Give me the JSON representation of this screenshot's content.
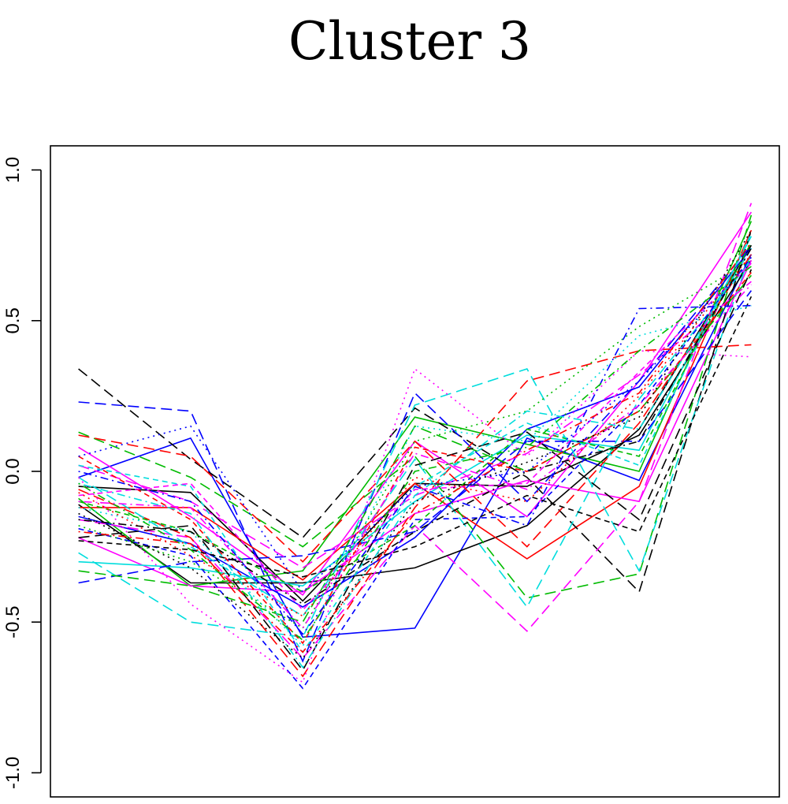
{
  "chart_data": {
    "type": "line",
    "title": "Cluster 3",
    "xlabel": "",
    "ylabel": "",
    "x": [
      1,
      2,
      3,
      4,
      5,
      6,
      7
    ],
    "ylim": [
      -1.08,
      1.08
    ],
    "xlim": [
      0.75,
      7.25
    ],
    "yticks": [
      "-1.0",
      "-0.5",
      "0.0",
      "0.5",
      "1.0"
    ],
    "ytick_values": [
      -1.0,
      -0.5,
      0.0,
      0.5,
      1.0
    ],
    "grid": false,
    "legend": "none",
    "colors": [
      "#000000",
      "#ff0000",
      "#00bb00",
      "#0000ff",
      "#00dddd",
      "#ff00ff"
    ],
    "series": [
      {
        "color": "#0000ff",
        "dash": "solid",
        "values": [
          -0.02,
          0.11,
          -0.55,
          -0.52,
          0.11,
          -0.03,
          0.72
        ]
      },
      {
        "color": "#000000",
        "dash": "solid",
        "values": [
          -0.05,
          -0.07,
          -0.43,
          -0.04,
          -0.05,
          0.12,
          0.7
        ]
      },
      {
        "color": "#000000",
        "dash": "solid",
        "values": [
          -0.11,
          -0.37,
          -0.37,
          -0.32,
          -0.18,
          0.14,
          0.75
        ]
      },
      {
        "color": "#ff0000",
        "dash": "solid",
        "values": [
          -0.12,
          -0.12,
          -0.36,
          -0.04,
          -0.29,
          -0.05,
          0.8
        ]
      },
      {
        "color": "#00bb00",
        "dash": "solid",
        "values": [
          -0.09,
          -0.38,
          -0.33,
          0.18,
          0.09,
          0.0,
          0.83
        ]
      },
      {
        "color": "#ff00ff",
        "dash": "solid",
        "values": [
          0.08,
          -0.15,
          -0.41,
          0.1,
          -0.15,
          0.3,
          0.86
        ]
      },
      {
        "color": "#ff00ff",
        "dash": "solid",
        "values": [
          -0.22,
          -0.38,
          -0.4,
          -0.14,
          -0.03,
          -0.1,
          0.7
        ]
      },
      {
        "color": "#0000ff",
        "dash": "solid",
        "values": [
          -0.15,
          -0.24,
          -0.45,
          -0.22,
          0.14,
          0.28,
          0.74
        ]
      },
      {
        "color": "#00dddd",
        "dash": "solid",
        "values": [
          -0.3,
          -0.32,
          -0.38,
          -0.1,
          0.12,
          0.07,
          0.78
        ]
      },
      {
        "color": "#000000",
        "dash": "dashed",
        "values": [
          0.34,
          0.04,
          -0.22,
          0.21,
          -0.02,
          -0.4,
          0.8
        ]
      },
      {
        "color": "#0000ff",
        "dash": "dashed",
        "values": [
          0.23,
          0.2,
          -0.63,
          0.26,
          -0.1,
          0.3,
          0.75
        ]
      },
      {
        "color": "#00bb00",
        "dash": "dashed",
        "values": [
          0.13,
          -0.02,
          -0.25,
          0.05,
          -0.42,
          -0.34,
          0.85
        ]
      },
      {
        "color": "#00dddd",
        "dash": "dashed",
        "values": [
          -0.27,
          -0.5,
          -0.55,
          0.22,
          0.34,
          -0.33,
          0.73
        ]
      },
      {
        "color": "#ff00ff",
        "dash": "dashed",
        "values": [
          -0.16,
          -0.22,
          -0.62,
          -0.18,
          -0.53,
          -0.1,
          0.89
        ]
      },
      {
        "color": "#ff0000",
        "dash": "dashed",
        "values": [
          -0.06,
          -0.22,
          -0.68,
          -0.12,
          0.3,
          0.4,
          0.42
        ]
      },
      {
        "color": "#0000ff",
        "dash": "dashed",
        "values": [
          -0.37,
          -0.3,
          -0.28,
          -0.2,
          0.1,
          0.1,
          0.6
        ]
      },
      {
        "color": "#00bb00",
        "dash": "dashed",
        "values": [
          -0.33,
          -0.38,
          -0.5,
          0.15,
          0.0,
          0.2,
          0.65
        ]
      },
      {
        "color": "#00dddd",
        "dash": "dashed",
        "values": [
          -0.02,
          -0.25,
          -0.48,
          0.04,
          -0.45,
          0.24,
          0.7
        ]
      },
      {
        "color": "#000000",
        "dash": "dashed",
        "values": [
          -0.22,
          -0.18,
          -0.66,
          0.02,
          0.13,
          -0.16,
          0.67
        ]
      },
      {
        "color": "#ff00ff",
        "dash": "dashed",
        "values": [
          0.02,
          -0.1,
          -0.32,
          -0.08,
          0.06,
          0.32,
          0.63
        ]
      },
      {
        "color": "#ff0000",
        "dash": "dashed",
        "values": [
          0.12,
          0.05,
          -0.3,
          0.1,
          -0.25,
          0.16,
          0.72
        ]
      },
      {
        "color": "#ff0000",
        "dash": "shortdash",
        "values": [
          0.05,
          -0.16,
          -0.57,
          0.08,
          0.0,
          0.2,
          0.66
        ]
      },
      {
        "color": "#00bb00",
        "dash": "shortdash",
        "values": [
          -0.1,
          -0.2,
          -0.4,
          -0.18,
          0.14,
          0.05,
          0.76
        ]
      },
      {
        "color": "#0000ff",
        "dash": "shortdash",
        "values": [
          -0.19,
          -0.28,
          -0.72,
          -0.16,
          -0.15,
          0.22,
          0.71
        ]
      },
      {
        "color": "#00dddd",
        "dash": "shortdash",
        "values": [
          0.02,
          -0.05,
          -0.6,
          -0.05,
          0.16,
          0.02,
          0.79
        ]
      },
      {
        "color": "#ff00ff",
        "dash": "shortdash",
        "values": [
          -0.08,
          -0.04,
          -0.46,
          -0.06,
          -0.04,
          0.33,
          0.69
        ]
      },
      {
        "color": "#000000",
        "dash": "shortdash",
        "values": [
          -0.23,
          -0.26,
          -0.35,
          -0.25,
          -0.08,
          -0.2,
          0.58
        ]
      },
      {
        "color": "#ff00ff",
        "dash": "dotted",
        "values": [
          -0.02,
          -0.44,
          -0.7,
          0.34,
          0.05,
          0.4,
          0.38
        ]
      },
      {
        "color": "#0000ff",
        "dash": "dotted",
        "values": [
          0.05,
          0.15,
          -0.4,
          -0.05,
          0.0,
          0.3,
          0.7
        ]
      },
      {
        "color": "#00bb00",
        "dash": "dotted",
        "values": [
          -0.18,
          -0.3,
          -0.52,
          0.1,
          0.2,
          0.48,
          0.7
        ]
      },
      {
        "color": "#00dddd",
        "dash": "dotted",
        "values": [
          -0.12,
          -0.2,
          -0.58,
          0.15,
          0.1,
          0.45,
          0.55
        ]
      },
      {
        "color": "#ff0000",
        "dash": "dotted",
        "values": [
          -0.07,
          -0.28,
          -0.48,
          -0.02,
          -0.1,
          0.25,
          0.72
        ]
      },
      {
        "color": "#000000",
        "dash": "dotted",
        "values": [
          -0.14,
          -0.32,
          -0.62,
          -0.1,
          0.03,
          0.18,
          0.8
        ]
      },
      {
        "color": "#0000ff",
        "dash": "dotdash",
        "values": [
          0.0,
          -0.1,
          -0.54,
          -0.05,
          -0.18,
          0.54,
          0.55
        ]
      },
      {
        "color": "#00dddd",
        "dash": "dotdash",
        "values": [
          -0.04,
          -0.14,
          -0.65,
          -0.08,
          0.2,
          0.14,
          0.74
        ]
      },
      {
        "color": "#00bb00",
        "dash": "dotdash",
        "values": [
          -0.04,
          -0.26,
          -0.56,
          0.0,
          0.08,
          0.4,
          0.68
        ]
      },
      {
        "color": "#ff0000",
        "dash": "dotdash",
        "values": [
          -0.2,
          -0.24,
          -0.6,
          -0.14,
          0.07,
          0.26,
          0.76
        ]
      },
      {
        "color": "#ff00ff",
        "dash": "dotdash",
        "values": [
          -0.1,
          -0.12,
          -0.52,
          0.06,
          -0.06,
          0.22,
          0.62
        ]
      },
      {
        "color": "#000000",
        "dash": "dotdash",
        "values": [
          -0.16,
          -0.2,
          -0.44,
          -0.2,
          0.0,
          0.1,
          0.74
        ]
      }
    ]
  }
}
